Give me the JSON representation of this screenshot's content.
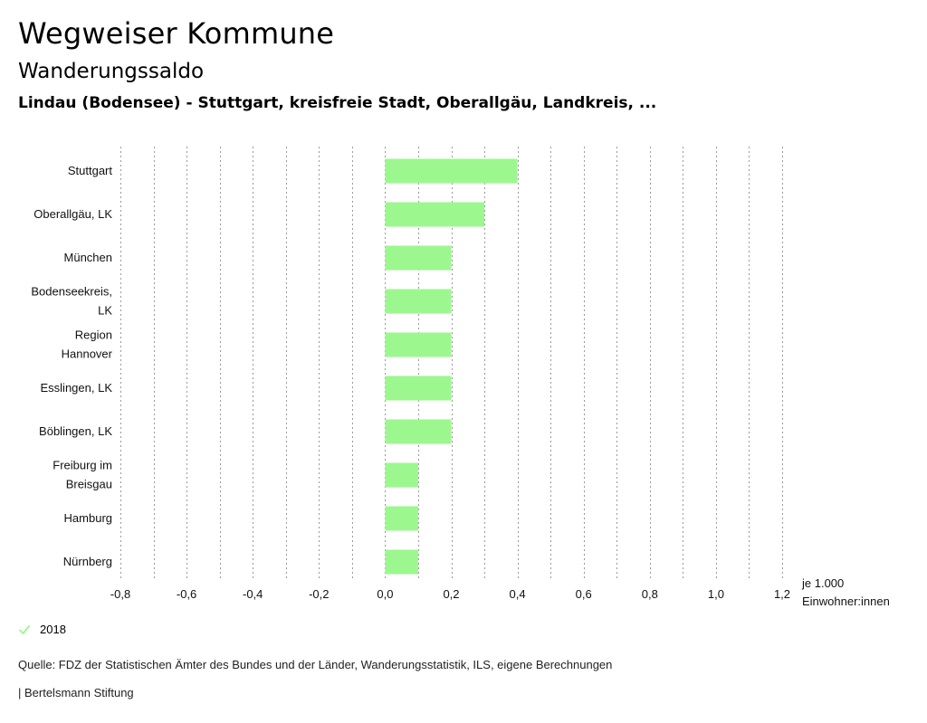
{
  "header": {
    "title": "Wegweiser Kommune",
    "subtitle": "Wanderungssaldo",
    "context": "Lindau (Bodensee) - Stuttgart, kreisfreie Stadt, Oberallgäu, Landkreis, ..."
  },
  "chart_data": {
    "type": "bar",
    "orientation": "horizontal",
    "categories": [
      [
        "Stuttgart"
      ],
      [
        "Oberallgäu, LK"
      ],
      [
        "München"
      ],
      [
        "Bodenseekreis,",
        "LK"
      ],
      [
        "Region",
        "Hannover"
      ],
      [
        "Esslingen, LK"
      ],
      [
        "Böblingen, LK"
      ],
      [
        "Freiburg im",
        "Breisgau"
      ],
      [
        "Hamburg"
      ],
      [
        "Nürnberg"
      ]
    ],
    "series": [
      {
        "name": "2018",
        "values": [
          0.4,
          0.3,
          0.2,
          0.2,
          0.2,
          0.2,
          0.2,
          0.1,
          0.1,
          0.1
        ]
      }
    ],
    "xlim": [
      -0.8,
      1.2
    ],
    "xticks": [
      -0.8,
      -0.6,
      -0.4,
      -0.2,
      0.0,
      0.2,
      0.4,
      0.6,
      0.8,
      1.0,
      1.2
    ],
    "xtick_labels": [
      "-0,8",
      "-0,6",
      "-0,4",
      "-0,2",
      "0,0",
      "0,2",
      "0,4",
      "0,6",
      "0,8",
      "1,0",
      "1,2"
    ],
    "xlabel": [
      "je 1.000",
      "Einwohner:innen"
    ],
    "grid": true,
    "bar_color": "#9cf78f"
  },
  "legend": {
    "label": "2018",
    "icon": "check-icon",
    "color": "#9cf78f"
  },
  "footer": {
    "source": "Quelle: FDZ der Statistischen Ämter des Bundes und der Länder, Wanderungsstatistik, ILS, eigene Berechnungen",
    "publisher": "| Bertelsmann Stiftung"
  }
}
